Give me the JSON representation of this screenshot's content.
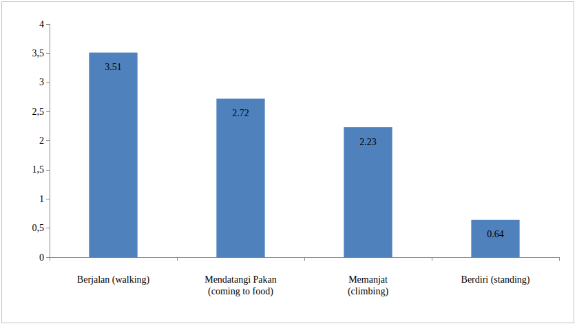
{
  "chart_data": {
    "type": "bar",
    "categories": [
      "Berjalan (walking)",
      "Mendatangi Pakan\n(coming to food)",
      "Memanjat\n(climbing)",
      "Berdiri (standing)"
    ],
    "values": [
      3.51,
      2.72,
      2.23,
      0.64
    ],
    "color": "#4f81bd",
    "ylim": [
      0,
      4
    ],
    "yticks": [
      0,
      {
        "value": 0.5,
        "label": "0,5"
      },
      1,
      {
        "value": 1.5,
        "label": "1,5"
      },
      2,
      {
        "value": 2.5,
        "label": "2,5"
      },
      3,
      {
        "value": 3.5,
        "label": "3,5"
      },
      4
    ],
    "grid": false,
    "data_labels": true
  }
}
